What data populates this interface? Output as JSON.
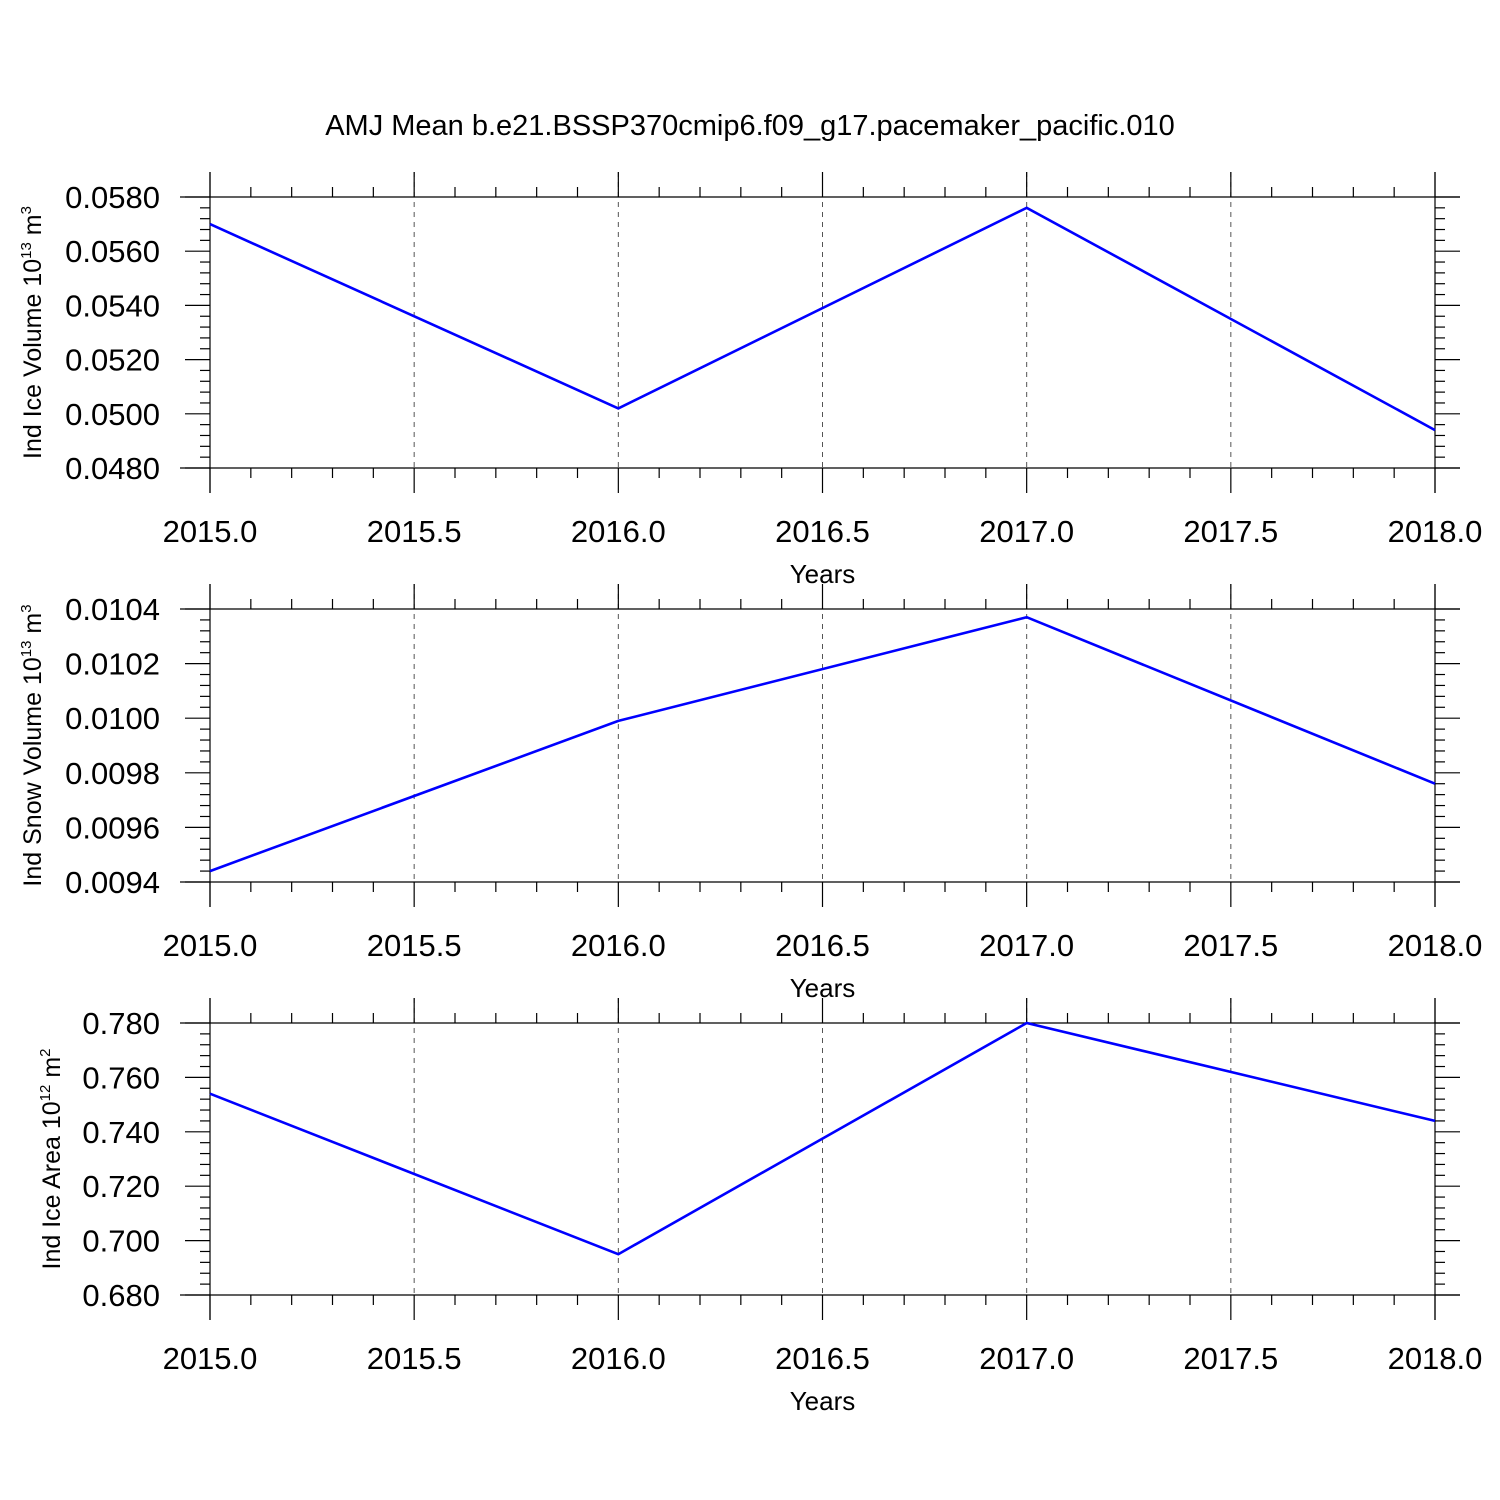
{
  "title": "AMJ Mean b.e21.BSSP370cmip6.f09_g17.pacemaker_pacific.010",
  "colors": {
    "series": "#0000ff",
    "axes": "#000000",
    "grid": "#555555"
  },
  "chart_data": [
    {
      "type": "line",
      "x": [
        2015.0,
        2016.0,
        2017.0,
        2018.0
      ],
      "values": [
        0.057,
        0.0502,
        0.0576,
        0.0494
      ],
      "xlim": [
        2015.0,
        2018.0
      ],
      "ylim": [
        0.048,
        0.058
      ],
      "xticks": [
        "2015.0",
        "2015.5",
        "2016.0",
        "2016.5",
        "2017.0",
        "2017.5",
        "2018.0"
      ],
      "yticks": [
        "0.0480",
        "0.0500",
        "0.0520",
        "0.0540",
        "0.0560",
        "0.0580"
      ],
      "xlabel": "Years",
      "ylabel": {
        "text": "Ind Ice Volume 10",
        "exp1": "13",
        "mid": " m",
        "exp2": "3"
      },
      "grid": "vertical dashed at major x ticks",
      "line_color": "#0000ff"
    },
    {
      "type": "line",
      "x": [
        2015.0,
        2016.0,
        2017.0,
        2018.0
      ],
      "values": [
        0.00944,
        0.00999,
        0.01037,
        0.00976
      ],
      "xlim": [
        2015.0,
        2018.0
      ],
      "ylim": [
        0.0094,
        0.0104
      ],
      "xticks": [
        "2015.0",
        "2015.5",
        "2016.0",
        "2016.5",
        "2017.0",
        "2017.5",
        "2018.0"
      ],
      "yticks": [
        "0.0094",
        "0.0096",
        "0.0098",
        "0.0100",
        "0.0102",
        "0.0104"
      ],
      "xlabel": "Years",
      "ylabel": {
        "text": "Ind Snow Volume 10",
        "exp1": "13",
        "mid": " m",
        "exp2": "3"
      },
      "grid": "vertical dashed at major x ticks",
      "line_color": "#0000ff"
    },
    {
      "type": "line",
      "x": [
        2015.0,
        2016.0,
        2017.0,
        2018.0
      ],
      "values": [
        0.754,
        0.695,
        0.78,
        0.744
      ],
      "xlim": [
        2015.0,
        2018.0
      ],
      "ylim": [
        0.68,
        0.78
      ],
      "xticks": [
        "2015.0",
        "2015.5",
        "2016.0",
        "2016.5",
        "2017.0",
        "2017.5",
        "2018.0"
      ],
      "yticks": [
        "0.680",
        "0.700",
        "0.720",
        "0.740",
        "0.760",
        "0.780"
      ],
      "xlabel": "Years",
      "ylabel": {
        "text": "Ind Ice Area 10",
        "exp1": "12",
        "mid": " m",
        "exp2": "2"
      },
      "grid": "vertical dashed at major x ticks",
      "line_color": "#0000ff"
    }
  ]
}
